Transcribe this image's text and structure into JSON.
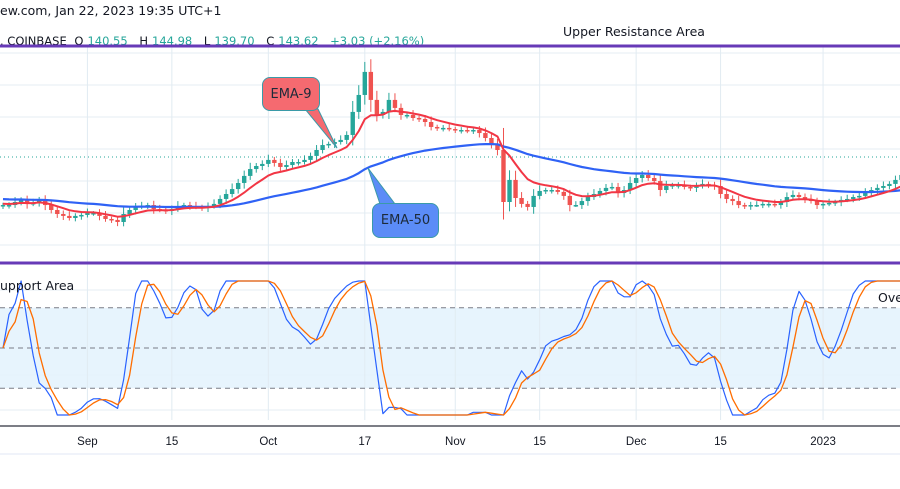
{
  "header": {
    "source_line": "ew.com, Jan 22, 2023 19:35 UTC+1",
    "symbol": ". COINBASE",
    "open_label": "O",
    "open": "140.55",
    "high_label": "H",
    "high": "144.98",
    "low_label": "L",
    "low": "139.70",
    "close_label": "C",
    "close": "143.62",
    "change": "+3.03 (+2.16%)"
  },
  "annotations": {
    "upper_resistance": "Upper Resistance Area",
    "support": "upport Area",
    "overbought": "Ove",
    "ema9_callout": "EMA-9",
    "ema50_callout": "EMA-50"
  },
  "colors": {
    "up": "#26a69a",
    "down": "#ef5350",
    "ema9": "#f23645",
    "ema50": "#2f62f5",
    "stoch_k": "#2962ff",
    "stoch_d": "#ff6d00",
    "level_line": "#673ab7",
    "band": "#e3f2fd",
    "ema9_callout": "#f56a70",
    "ema50_callout": "#5b8cf7"
  },
  "chart_data": [
    {
      "type": "candlestick",
      "interval": "1D",
      "x_range": [
        "2022-08-18",
        "2023-01-15"
      ],
      "last_price": 143.62,
      "indicators": [
        "EMA-9",
        "EMA-50"
      ],
      "closes": [
        113.6,
        113.6,
        115.5,
        116.8,
        114.3,
        114.9,
        116.8,
        113.6,
        110.5,
        108.0,
        106.8,
        105.5,
        106.8,
        107.4,
        108.6,
        108.6,
        106.8,
        104.9,
        104.3,
        103.0,
        108.0,
        110.5,
        112.4,
        113.0,
        113.6,
        111.1,
        110.5,
        109.9,
        111.1,
        113.0,
        113.6,
        113.0,
        112.4,
        111.8,
        113.0,
        114.3,
        117.4,
        120.5,
        123.6,
        127.4,
        131.8,
        136.1,
        138.0,
        139.3,
        141.8,
        139.9,
        137.4,
        138.6,
        140.5,
        140.5,
        141.8,
        144.3,
        148.0,
        151.1,
        151.8,
        153.0,
        154.3,
        157.4,
        171.8,
        182.4,
        196.8,
        179.3,
        169.9,
        171.8,
        179.3,
        174.3,
        169.9,
        169.9,
        168.0,
        167.4,
        165.5,
        162.4,
        161.8,
        161.8,
        161.1,
        160.5,
        160.5,
        159.9,
        160.5,
        158.6,
        155.5,
        151.8,
        148.0,
        115.5,
        129.3,
        118.0,
        114.3,
        112.4,
        119.3,
        122.4,
        123.0,
        123.0,
        121.8,
        119.3,
        113.6,
        113.6,
        116.1,
        118.6,
        120.5,
        122.4,
        124.3,
        124.9,
        121.1,
        123.0,
        127.4,
        130.5,
        132.4,
        130.5,
        128.6,
        123.0,
        125.5,
        126.1,
        126.1,
        124.9,
        124.3,
        125.5,
        126.8,
        126.1,
        125.5,
        120.5,
        117.4,
        116.1,
        113.6,
        113.0,
        113.6,
        113.6,
        114.3,
        114.3,
        113.6,
        115.5,
        118.6,
        119.9,
        118.6,
        117.4,
        116.1,
        113.6,
        114.3,
        114.9,
        115.5,
        116.8,
        117.4,
        118.6,
        119.3,
        121.1,
        123.0,
        124.3,
        125.5,
        126.8,
        129.3,
        132.4
      ],
      "x_ticks": [
        {
          "label": "Sep",
          "date": "2022-09-01"
        },
        {
          "label": "15",
          "date": "2022-09-15"
        },
        {
          "label": "Oct",
          "date": "2022-10-01"
        },
        {
          "label": "17",
          "date": "2022-10-17"
        },
        {
          "label": "Nov",
          "date": "2022-11-01"
        },
        {
          "label": "15",
          "date": "2022-11-15"
        },
        {
          "label": "Dec",
          "date": "2022-12-01"
        },
        {
          "label": "15",
          "date": "2022-12-15"
        },
        {
          "label": "2023",
          "date": "2023-01-01"
        }
      ]
    },
    {
      "type": "line",
      "indicator": "Stochastic RSI",
      "ylim": [
        0,
        100
      ],
      "levels": [
        80,
        50,
        20
      ],
      "series": [
        "K",
        "D"
      ]
    }
  ]
}
